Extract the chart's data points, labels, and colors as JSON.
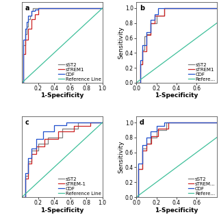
{
  "background": "#ffffff",
  "plot_bg": "#ffffff",
  "line_colors": {
    "sST2": "#7f7f7f",
    "sTREM1": "#cc2222",
    "CDF": "#1f4fcc",
    "Reference": "#3dbf99"
  },
  "panel_a": {
    "label": "a",
    "sST2_x": [
      0,
      0.02,
      0.02,
      0.04,
      0.04,
      0.06,
      0.06,
      0.08,
      0.08,
      0.1,
      0.1,
      0.12,
      0.12,
      0.14,
      0.14,
      0.18,
      0.18,
      1.0
    ],
    "sST2_y": [
      0,
      0,
      0.5,
      0.5,
      0.65,
      0.65,
      0.75,
      0.75,
      0.85,
      0.85,
      0.9,
      0.9,
      0.96,
      0.96,
      1.0,
      1.0,
      1.0,
      1.0
    ],
    "sTREM1_x": [
      0,
      0.02,
      0.02,
      0.04,
      0.04,
      0.08,
      0.08,
      0.12,
      0.12,
      0.16,
      0.16,
      0.2,
      0.2,
      1.0
    ],
    "sTREM1_y": [
      0,
      0,
      0.38,
      0.38,
      0.58,
      0.58,
      0.72,
      0.72,
      0.85,
      0.85,
      0.92,
      0.92,
      1.0,
      1.0
    ],
    "CDF_x": [
      0,
      0.02,
      0.02,
      0.04,
      0.04,
      0.06,
      0.06,
      0.08,
      0.08,
      0.12,
      0.12,
      0.16,
      0.16,
      0.2,
      0.2,
      1.0
    ],
    "CDF_y": [
      0,
      0,
      0.58,
      0.58,
      0.72,
      0.72,
      0.82,
      0.82,
      0.9,
      0.9,
      0.96,
      0.96,
      0.98,
      0.98,
      1.0,
      1.0
    ],
    "xlim": [
      0,
      1.0
    ],
    "ylim": [
      0,
      1.08
    ],
    "xticks": [
      0.2,
      0.4,
      0.6,
      0.8,
      1.0
    ],
    "yticks": [],
    "has_ylabel": false,
    "has_xlabel": true,
    "legend_loc": "lower right",
    "legend_labels": [
      "sST2",
      "sTREM1",
      "CDF",
      "Reference Line"
    ]
  },
  "panel_b": {
    "label": "b",
    "sST2_x": [
      0,
      0.04,
      0.04,
      0.06,
      0.06,
      0.08,
      0.08,
      0.1,
      0.1,
      0.14,
      0.14,
      0.2,
      0.2,
      0.28,
      0.28,
      1.0
    ],
    "sST2_y": [
      0,
      0,
      0.25,
      0.25,
      0.44,
      0.44,
      0.62,
      0.62,
      0.65,
      0.65,
      0.8,
      0.8,
      0.9,
      0.9,
      1.0,
      1.0
    ],
    "sTREM1_x": [
      0,
      0.04,
      0.04,
      0.06,
      0.06,
      0.1,
      0.1,
      0.14,
      0.14,
      0.18,
      0.18,
      0.28,
      0.28,
      1.0
    ],
    "sTREM1_y": [
      0,
      0,
      0.25,
      0.25,
      0.42,
      0.42,
      0.64,
      0.64,
      0.8,
      0.8,
      0.9,
      0.9,
      1.0,
      1.0
    ],
    "CDF_x": [
      0,
      0.04,
      0.04,
      0.06,
      0.06,
      0.1,
      0.1,
      0.14,
      0.14,
      0.18,
      0.18,
      0.22,
      0.22,
      1.0
    ],
    "CDF_y": [
      0,
      0,
      0.3,
      0.3,
      0.5,
      0.5,
      0.68,
      0.68,
      0.84,
      0.84,
      0.92,
      0.92,
      1.0,
      1.0
    ],
    "xlim": [
      0,
      0.8
    ],
    "ylim": [
      0,
      1.08
    ],
    "xticks": [
      0.0,
      0.2,
      0.4,
      0.6
    ],
    "yticks": [
      0.0,
      0.2,
      0.4,
      0.6,
      0.8,
      1.0
    ],
    "has_ylabel": true,
    "has_xlabel": true,
    "legend_loc": "lower right",
    "legend_labels": [
      "sST2",
      "sTREM1",
      "CDF",
      "Refere..."
    ]
  },
  "panel_c": {
    "label": "c",
    "sST2_x": [
      0,
      0.04,
      0.04,
      0.08,
      0.08,
      0.12,
      0.12,
      0.2,
      0.2,
      0.32,
      0.32,
      0.5,
      0.5,
      0.7,
      0.7,
      1.0
    ],
    "sST2_y": [
      0,
      0,
      0.28,
      0.28,
      0.48,
      0.48,
      0.62,
      0.62,
      0.72,
      0.72,
      0.8,
      0.8,
      0.92,
      0.92,
      1.0,
      1.0
    ],
    "sTREM1_x": [
      0,
      0.04,
      0.04,
      0.08,
      0.08,
      0.12,
      0.12,
      0.18,
      0.18,
      0.28,
      0.28,
      0.45,
      0.45,
      0.65,
      0.65,
      0.85,
      0.85,
      1.0
    ],
    "sTREM1_y": [
      0,
      0,
      0.25,
      0.25,
      0.45,
      0.45,
      0.58,
      0.58,
      0.68,
      0.68,
      0.78,
      0.78,
      0.88,
      0.88,
      0.95,
      0.95,
      1.0,
      1.0
    ],
    "CDF_x": [
      0,
      0.04,
      0.04,
      0.08,
      0.08,
      0.12,
      0.12,
      0.18,
      0.18,
      0.26,
      0.26,
      0.4,
      0.4,
      0.55,
      0.55,
      1.0
    ],
    "CDF_y": [
      0,
      0,
      0.32,
      0.32,
      0.52,
      0.52,
      0.65,
      0.65,
      0.78,
      0.78,
      0.88,
      0.88,
      0.96,
      0.96,
      1.0,
      1.0
    ],
    "xlim": [
      0,
      1.0
    ],
    "ylim": [
      0,
      1.08
    ],
    "xticks": [
      0.2,
      0.4,
      0.6,
      0.8,
      1.0
    ],
    "yticks": [],
    "has_ylabel": false,
    "has_xlabel": true,
    "legend_loc": "lower right",
    "legend_labels": [
      "sST2",
      "sTREM-1",
      "CDF",
      "Reference Line"
    ]
  },
  "panel_d": {
    "label": "d",
    "sST2_x": [
      0,
      0.02,
      0.02,
      0.06,
      0.06,
      0.1,
      0.1,
      0.14,
      0.14,
      0.2,
      0.2,
      0.3,
      0.3,
      1.0
    ],
    "sST2_y": [
      0,
      0,
      0.38,
      0.38,
      0.65,
      0.65,
      0.72,
      0.72,
      0.8,
      0.8,
      0.9,
      0.9,
      1.0,
      1.0
    ],
    "sTREM1_x": [
      0,
      0.02,
      0.02,
      0.06,
      0.06,
      0.1,
      0.1,
      0.15,
      0.15,
      0.22,
      0.22,
      0.32,
      0.32,
      1.0
    ],
    "sTREM1_y": [
      0,
      0,
      0.38,
      0.38,
      0.62,
      0.62,
      0.72,
      0.72,
      0.82,
      0.82,
      0.92,
      0.92,
      1.0,
      1.0
    ],
    "CDF_x": [
      0,
      0.02,
      0.02,
      0.06,
      0.06,
      0.1,
      0.1,
      0.14,
      0.14,
      0.2,
      0.2,
      0.28,
      0.28,
      1.0
    ],
    "CDF_y": [
      0,
      0,
      0.45,
      0.45,
      0.7,
      0.7,
      0.8,
      0.8,
      0.88,
      0.88,
      0.95,
      0.95,
      1.0,
      1.0
    ],
    "xlim": [
      0,
      0.8
    ],
    "ylim": [
      0,
      1.08
    ],
    "xticks": [
      0.0,
      0.2,
      0.4,
      0.6
    ],
    "yticks": [
      0.0,
      0.2,
      0.4,
      0.6,
      0.8,
      1.0
    ],
    "has_ylabel": true,
    "has_xlabel": true,
    "legend_loc": "lower right",
    "legend_labels": [
      "sST2",
      "sTREM...",
      "CDF",
      "Refere..."
    ]
  },
  "xlabel": "1-Specificity",
  "ylabel": "Sensitivity",
  "linewidth": 0.9,
  "fontsize": 7,
  "tick_fontsize": 5.5,
  "label_fontsize": 6.5
}
